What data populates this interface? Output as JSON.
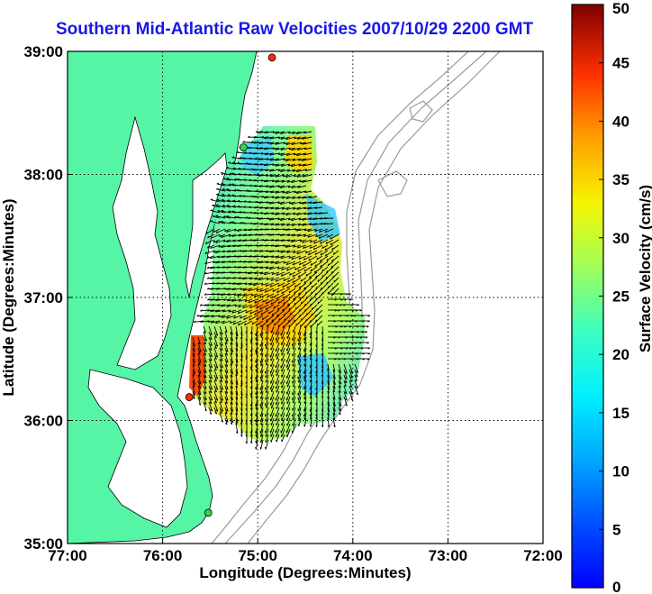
{
  "title": "Southern Mid-Atlantic Raw Velocities 2007/10/29 2200 GMT",
  "map": {
    "xlabel": "Longitude (Degrees:Minutes)",
    "ylabel": "Latitude (Degrees:Minutes)",
    "lon_range": [
      -77,
      -72
    ],
    "lat_range": [
      35,
      39
    ],
    "x_ticks": [
      {
        "value": -77,
        "label": "77:00"
      },
      {
        "value": -76,
        "label": "76:00"
      },
      {
        "value": -75,
        "label": "75:00"
      },
      {
        "value": -74,
        "label": "74:00"
      },
      {
        "value": -73,
        "label": "73:00"
      },
      {
        "value": -72,
        "label": "72:00"
      }
    ],
    "y_ticks": [
      {
        "value": 35,
        "label": "35:00"
      },
      {
        "value": 36,
        "label": "36:00"
      },
      {
        "value": 37,
        "label": "37:00"
      },
      {
        "value": 38,
        "label": "38:00"
      },
      {
        "value": 39,
        "label": "39:00"
      }
    ],
    "grid": true,
    "land_color": "#55f5a5",
    "arrow_color": "#000000",
    "bathymetry_color": "#9a9a9a",
    "stations": [
      {
        "lon": -74.85,
        "lat": 38.95,
        "color": "#ff2a00"
      },
      {
        "lon": -75.15,
        "lat": 38.22,
        "color": "#2fd63f"
      },
      {
        "lon": -75.72,
        "lat": 36.19,
        "color": "#ff2a00"
      },
      {
        "lon": -75.52,
        "lat": 35.25,
        "color": "#2fd63f"
      }
    ]
  },
  "colorbar": {
    "label": "Surface Velocity (cm/s)",
    "min": 0,
    "max": 50,
    "tick_labels": [
      "0",
      "5",
      "10",
      "15",
      "20",
      "25",
      "30",
      "35",
      "40",
      "45",
      "50"
    ],
    "colormap": "jet"
  }
}
